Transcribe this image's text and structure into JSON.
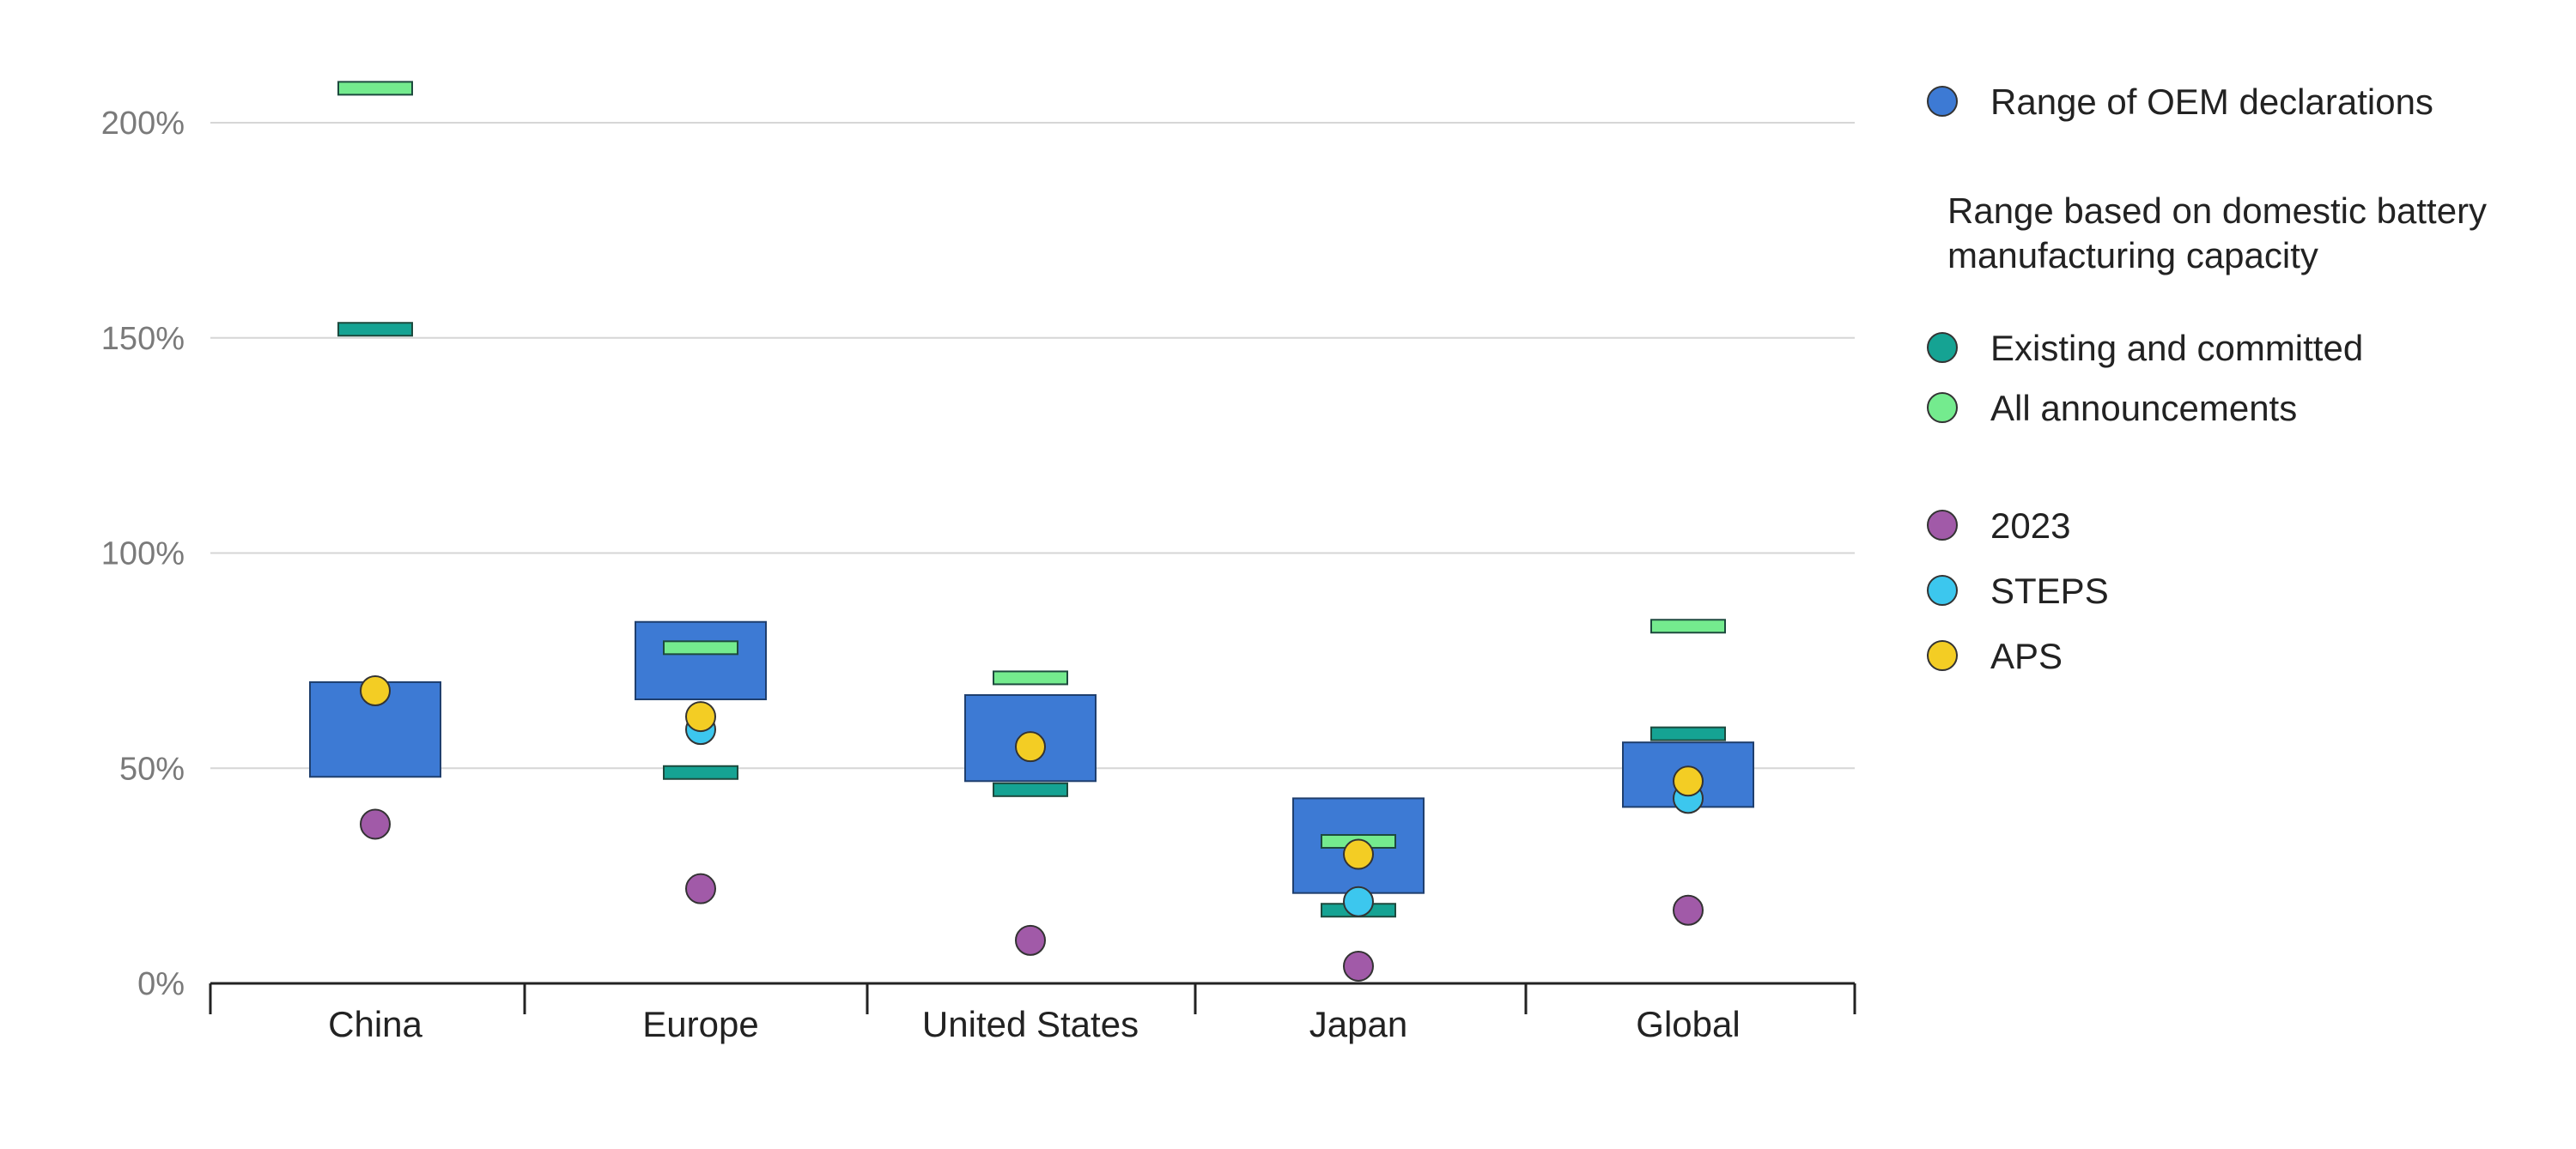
{
  "chart_data": {
    "type": "range-dot",
    "categories": [
      "China",
      "Europe",
      "United States",
      "Japan",
      "Global"
    ],
    "y_axis": {
      "ylim": [
        0,
        210
      ],
      "ticks": [
        0,
        50,
        100,
        150,
        200
      ],
      "tick_labels": [
        "0%",
        "50%",
        "100%",
        "150%",
        "200%"
      ],
      "grid": true
    },
    "oem_range": {
      "name": "Range of OEM declarations",
      "color": "#3d7ad4",
      "values": [
        [
          48,
          70
        ],
        [
          66,
          84
        ],
        [
          47,
          67
        ],
        [
          21,
          43
        ],
        [
          41,
          56
        ]
      ]
    },
    "battery_capacity_group_title": "Range based on domestic battery manufacturing capacity",
    "series_markers": [
      {
        "name": "Existing and committed",
        "color": "#15a393",
        "values": [
          152,
          49,
          45,
          17,
          58
        ]
      },
      {
        "name": "All announcements",
        "color": "#74eb8e",
        "values": [
          208,
          78,
          71,
          33,
          83
        ]
      }
    ],
    "series_points": [
      {
        "name": "2023",
        "color": "#a15aa8",
        "values": [
          37,
          22,
          10,
          4,
          17
        ]
      },
      {
        "name": "STEPS",
        "color": "#3cc7ee",
        "values": [
          null,
          59,
          null,
          19,
          43
        ]
      },
      {
        "name": "APS",
        "color": "#f3cd24",
        "values": [
          68,
          62,
          55,
          30,
          47
        ]
      }
    ],
    "legend_position": "right"
  }
}
